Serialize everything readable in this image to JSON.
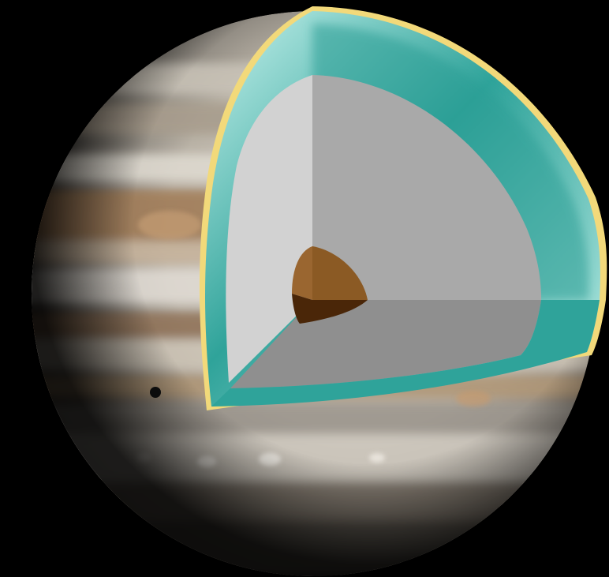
{
  "scene": {
    "subject": "planet-cutaway",
    "colors": {
      "background": "#000000",
      "planet_band_light": "#d9d4cc",
      "planet_band_tan": "#b08a63",
      "planet_band_brown": "#8a6a4c",
      "planet_band_grey": "#9a9690",
      "atmosphere_edge": "#f2d97a",
      "outer_layer_teal": "#2fa39a",
      "outer_layer_light": "#c9f3ee",
      "inner_face_light": "#d2d2d2",
      "inner_face_mid": "#a9a9a9",
      "inner_face_dark": "#8f8f8f",
      "core_light": "#8b5a24",
      "core_dark": "#4a2608",
      "moon_shadow": "#111111"
    },
    "layers": [
      "atmosphere-edge",
      "outer-fluid-layer",
      "inner-layer",
      "core"
    ]
  }
}
